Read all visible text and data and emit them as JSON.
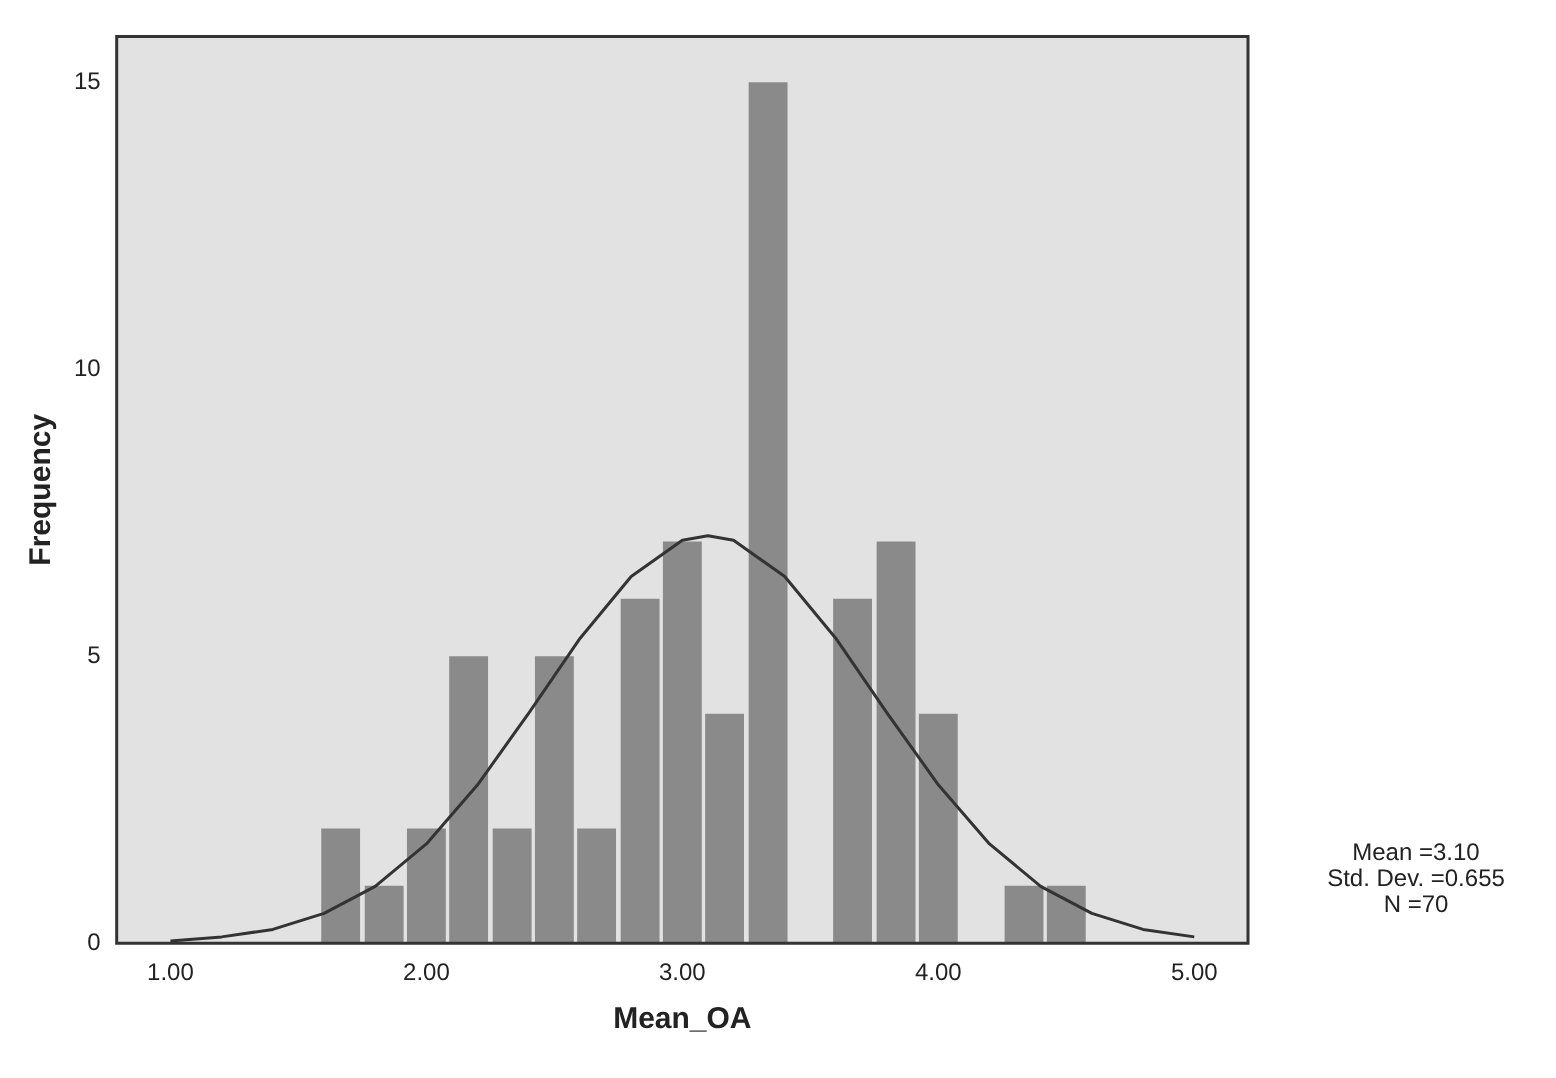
{
  "chart_data": {
    "type": "histogram",
    "bins": [
      1.58,
      1.75,
      1.92,
      2.08,
      2.25,
      2.42,
      2.58,
      2.75,
      2.92,
      3.08,
      3.25,
      3.42,
      3.58,
      3.75,
      3.92,
      4.08,
      4.25,
      4.42,
      4.58
    ],
    "values": [
      2,
      1,
      2,
      5,
      2,
      5,
      2,
      6,
      7,
      4,
      15,
      0,
      6,
      7,
      4,
      0,
      1,
      1
    ],
    "color": "#8a8a8a",
    "series": [
      {
        "type": "line",
        "color": "#333333",
        "x": [
          1.0,
          1.2,
          1.4,
          1.6,
          1.8,
          2.0,
          2.2,
          2.4,
          2.6,
          2.8,
          3.0,
          3.1,
          3.2,
          3.4,
          3.6,
          3.8,
          4.0,
          4.2,
          4.4,
          4.6,
          4.8,
          5.0
        ],
        "values": [
          0.04,
          0.11,
          0.24,
          0.52,
          0.99,
          1.73,
          2.76,
          4.01,
          5.31,
          6.39,
          7.02,
          7.1,
          7.02,
          6.39,
          5.31,
          4.01,
          2.76,
          1.73,
          0.99,
          0.52,
          0.24,
          0.11
        ]
      }
    ],
    "xlabel": "Mean_OA",
    "ylabel": "Frequency",
    "xlim": [
      0.79,
      5.21
    ],
    "ylim": [
      0,
      15.8
    ],
    "xticks": [
      {
        "value": 1,
        "label": "1.00"
      },
      {
        "value": 2,
        "label": "2.00"
      },
      {
        "value": 3,
        "label": "3.00"
      },
      {
        "value": 4,
        "label": "4.00"
      },
      {
        "value": 5,
        "label": "5.00"
      }
    ],
    "yticks": [
      0,
      5,
      10,
      15
    ],
    "grid": false,
    "legend": false,
    "annotations": [
      "Mean =3.10",
      "Std. Dev. =0.655",
      "N =70"
    ]
  }
}
